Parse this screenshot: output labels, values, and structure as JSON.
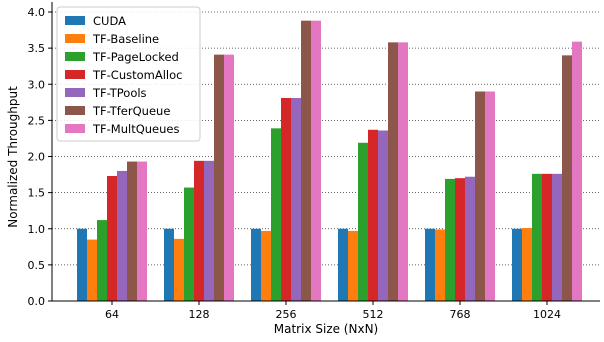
{
  "chart_data": {
    "type": "bar",
    "title": "",
    "xlabel": "Matrix Size (NxN)",
    "ylabel": "Normalized Throughput",
    "ylim": [
      0,
      4.0
    ],
    "yticks": [
      "0.0",
      "0.5",
      "1.0",
      "1.5",
      "2.0",
      "2.5",
      "3.0",
      "3.5",
      "4.0"
    ],
    "grid": "horizontal dotted",
    "legend_position": "top-left",
    "categories": [
      "64",
      "128",
      "256",
      "512",
      "768",
      "1024"
    ],
    "series": [
      {
        "name": "CUDA",
        "color": "#1f77b4",
        "values": [
          1.0,
          1.0,
          1.0,
          1.0,
          1.0,
          1.0
        ]
      },
      {
        "name": "TF-Baseline",
        "color": "#ff7f0e",
        "values": [
          0.85,
          0.86,
          0.97,
          0.97,
          0.99,
          1.01
        ]
      },
      {
        "name": "TF-PageLocked",
        "color": "#2ca02c",
        "values": [
          1.12,
          1.57,
          2.39,
          2.19,
          1.69,
          1.76
        ]
      },
      {
        "name": "TF-CustomAlloc",
        "color": "#d62728",
        "values": [
          1.73,
          1.94,
          2.81,
          2.37,
          1.7,
          1.76
        ]
      },
      {
        "name": "TF-TPools",
        "color": "#9467bd",
        "values": [
          1.8,
          1.94,
          2.81,
          2.36,
          1.72,
          1.76
        ]
      },
      {
        "name": "TF-TferQueue",
        "color": "#8c564b",
        "values": [
          1.93,
          3.41,
          3.88,
          3.58,
          2.9,
          3.4
        ]
      },
      {
        "name": "TF-MultQueues",
        "color": "#e377c2",
        "values": [
          1.93,
          3.41,
          3.88,
          3.58,
          2.9,
          3.59
        ]
      }
    ]
  }
}
